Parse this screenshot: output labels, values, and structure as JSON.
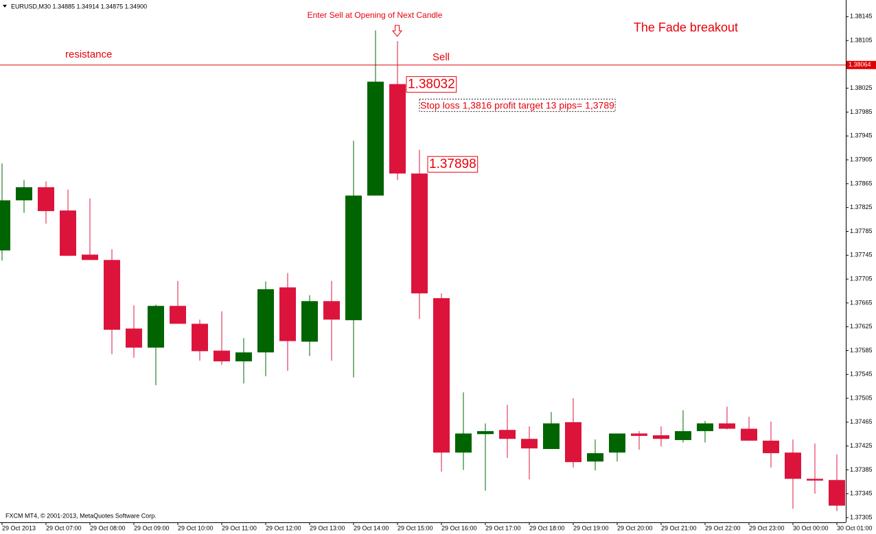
{
  "chart_data": {
    "type": "candlestick",
    "header": "EURUSD,M30  1.34885 1.34914 1.34875 1.34900",
    "title": "The Fade breakout",
    "footer": "FXCM MT4, © 2001-2013, MetaQuotes Software Corp.",
    "annotations": [
      "Enter Sell at Opening of Next Candle",
      "resistance",
      "Sell",
      "Stop loss 1,3816 profit target 13 pips= 1,3789"
    ],
    "price_labels": [
      1.38032,
      1.37898
    ],
    "hline": {
      "value": 1.38064,
      "color": "#e00000"
    },
    "up_color": "#006400",
    "down_color": "#dc143c",
    "categories": [
      "29 Oct 2013",
      null,
      "29 Oct 07:00",
      null,
      "29 Oct 08:00",
      null,
      "29 Oct 09:00",
      null,
      "29 Oct 10:00",
      null,
      "29 Oct 11:00",
      null,
      "29 Oct 12:00",
      null,
      "29 Oct 13:00",
      null,
      "29 Oct 14:00",
      null,
      "29 Oct 15:00",
      null,
      "29 Oct 16:00",
      null,
      "29 Oct 17:00",
      null,
      "29 Oct 18:00",
      null,
      "29 Oct 19:00",
      null,
      "29 Oct 20:00",
      null,
      "29 Oct 21:00",
      null,
      "29 Oct 22:00",
      null,
      "29 Oct 23:00",
      null,
      "30 Oct 00:00",
      null,
      "30 Oct 01:00"
    ],
    "open": [
      1.37753,
      1.37837,
      1.37859,
      1.3782,
      1.37746,
      1.37737,
      1.37622,
      1.3759,
      1.3766,
      1.3763,
      1.37585,
      1.37567,
      1.37582,
      1.37691,
      1.376,
      1.37668,
      1.37636,
      1.37845,
      1.38032,
      1.37882,
      1.37673,
      1.37414,
      1.37445,
      1.37452,
      1.37437,
      1.3742,
      1.37465,
      1.37399,
      1.37414,
      1.37446,
      1.37443,
      1.37435,
      1.3745,
      1.37463,
      1.37454,
      1.37434,
      1.37414,
      1.3737,
      1.37368
    ],
    "high": [
      1.37899,
      1.37871,
      1.37869,
      1.37855,
      1.3784,
      1.37755,
      1.37661,
      1.37662,
      1.37702,
      1.37637,
      1.37651,
      1.37606,
      1.37701,
      1.37715,
      1.37678,
      1.37702,
      1.37937,
      1.38122,
      1.38104,
      1.37922,
      1.37681,
      1.37515,
      1.37463,
      1.37494,
      1.37458,
      1.37482,
      1.37505,
      1.37436,
      1.37446,
      1.3745,
      1.37458,
      1.37485,
      1.37467,
      1.37491,
      1.37474,
      1.37466,
      1.37436,
      1.37429,
      1.37411
    ],
    "low": [
      1.37736,
      1.37816,
      1.37798,
      1.37744,
      1.37737,
      1.37579,
      1.37573,
      1.37527,
      1.3763,
      1.37568,
      1.37561,
      1.3753,
      1.37542,
      1.37551,
      1.37576,
      1.37568,
      1.3754,
      1.37845,
      1.37871,
      1.37638,
      1.37382,
      1.37385,
      1.3735,
      1.37405,
      1.37369,
      1.3742,
      1.37389,
      1.37384,
      1.37399,
      1.37419,
      1.37424,
      1.37431,
      1.37431,
      1.37453,
      1.37434,
      1.37389,
      1.3732,
      1.37345,
      1.37316
    ],
    "close": [
      1.37837,
      1.37859,
      1.37819,
      1.37744,
      1.37737,
      1.3762,
      1.3759,
      1.3766,
      1.3763,
      1.37584,
      1.37567,
      1.37582,
      1.37688,
      1.37601,
      1.37668,
      1.37637,
      1.37845,
      1.38036,
      1.37882,
      1.37681,
      1.37414,
      1.37446,
      1.3745,
      1.37437,
      1.37421,
      1.37463,
      1.37398,
      1.37413,
      1.37446,
      1.37442,
      1.37437,
      1.3745,
      1.37463,
      1.37454,
      1.37434,
      1.37413,
      1.3737,
      1.37367,
      1.37325
    ],
    "ylim": [
      1.37297,
      1.38173
    ],
    "yticks": [
      1.38145,
      1.38105,
      1.38025,
      1.37985,
      1.37945,
      1.37905,
      1.37865,
      1.37825,
      1.37785,
      1.37745,
      1.37705,
      1.37665,
      1.37625,
      1.37585,
      1.37545,
      1.37505,
      1.37465,
      1.37425,
      1.37385,
      1.37345,
      1.37305
    ]
  }
}
